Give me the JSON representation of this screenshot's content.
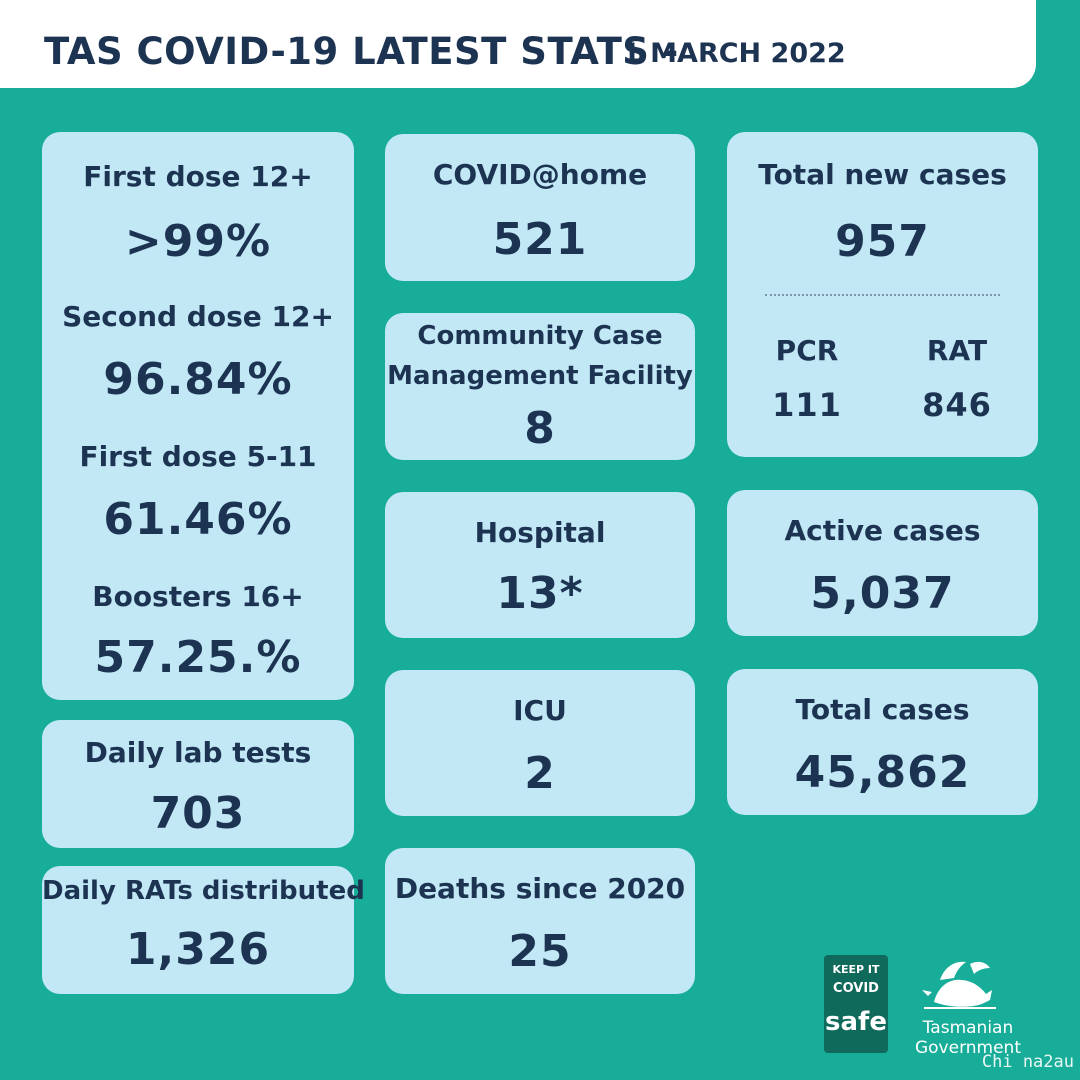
{
  "header": {
    "title": "TAS COVID-19 LATEST STATS -",
    "date": "1 MARCH 2022"
  },
  "vaccination": {
    "first_dose_12_label": "First dose 12+",
    "first_dose_12_value": ">99%",
    "second_dose_12_label": "Second dose 12+",
    "second_dose_12_value": "96.84%",
    "first_dose_5_11_label": "First dose 5-11",
    "first_dose_5_11_value": "61.46%",
    "boosters_16_label": "Boosters 16+",
    "boosters_16_value": "57.25.%"
  },
  "daily_lab_tests": {
    "label": "Daily lab tests",
    "value": "703"
  },
  "daily_rats": {
    "label": "Daily RATs distributed",
    "value": "1,326"
  },
  "covid_home": {
    "label": "COVID@home",
    "value": "521"
  },
  "ccmf": {
    "label_line1": "Community Case",
    "label_line2": "Management Facility",
    "value": "8"
  },
  "hospital": {
    "label": "Hospital",
    "value": "13*"
  },
  "icu": {
    "label": "ICU",
    "value": "2"
  },
  "deaths": {
    "label": "Deaths since 2020",
    "value": "25"
  },
  "total_new_cases": {
    "label": "Total new cases",
    "value": "957",
    "pcr_label": "PCR",
    "pcr_value": "111",
    "rat_label": "RAT",
    "rat_value": "846"
  },
  "active_cases": {
    "label": "Active cases",
    "value": "5,037"
  },
  "total_cases": {
    "label": "Total cases",
    "value": "45,862"
  },
  "footer": {
    "keep_it": "KEEP IT",
    "covid": "COVID",
    "safe": "safe",
    "gov_line1": "Tasmanian",
    "gov_line2": "Government",
    "watermark": "Chi na2au"
  },
  "colors": {
    "background": "#17ad98",
    "card": "#c2e8f6",
    "text": "#1c3352"
  }
}
